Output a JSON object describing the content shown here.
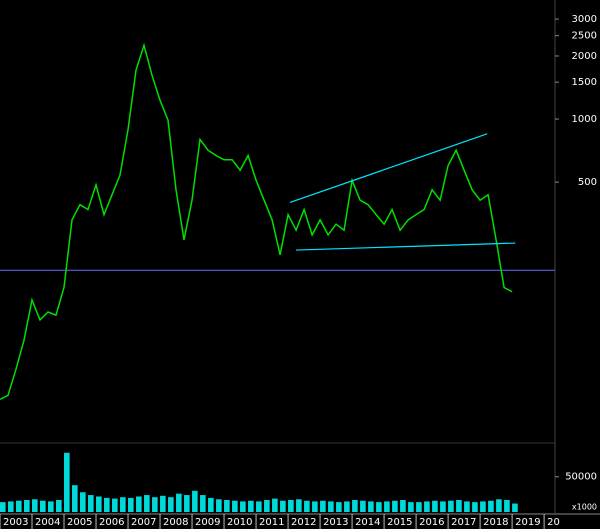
{
  "chart_data": [
    {
      "type": "line",
      "color": "#00e000",
      "log_scale": true,
      "x": [
        2003,
        2003.25,
        2003.5,
        2003.75,
        2004,
        2004.25,
        2004.5,
        2004.75,
        2005,
        2005.25,
        2005.5,
        2005.75,
        2006,
        2006.25,
        2006.5,
        2006.75,
        2007,
        2007.25,
        2007.5,
        2007.75,
        2008,
        2008.25,
        2008.5,
        2008.75,
        2009,
        2009.25,
        2009.5,
        2009.75,
        2010,
        2010.25,
        2010.5,
        2010.75,
        2011,
        2011.25,
        2011.5,
        2011.75,
        2012,
        2012.25,
        2012.5,
        2012.75,
        2013,
        2013.25,
        2013.5,
        2013.75,
        2014,
        2014.25,
        2014.5,
        2014.75,
        2015,
        2015.25,
        2015.5,
        2015.75,
        2016,
        2016.25,
        2016.5,
        2016.75,
        2017,
        2017.25,
        2017.5,
        2017.75,
        2018,
        2018.25,
        2018.5,
        2018.75,
        2019
      ],
      "values": [
        46,
        48,
        64,
        88,
        137,
        110,
        120,
        116,
        157,
        330,
        390,
        370,
        485,
        350,
        435,
        540,
        890,
        1710,
        2250,
        1620,
        1230,
        990,
        460,
        265,
        410,
        800,
        710,
        670,
        640,
        640,
        570,
        670,
        510,
        410,
        330,
        225,
        350,
        295,
        370,
        280,
        330,
        280,
        315,
        295,
        510,
        410,
        390,
        350,
        315,
        370,
        295,
        330,
        350,
        370,
        460,
        410,
        600,
        710,
        570,
        460,
        410,
        435,
        265,
        157,
        150
      ],
      "xlim": [
        2003,
        2020.34
      ],
      "xticks": [
        2003,
        2004,
        2005,
        2006,
        2007,
        2008,
        2009,
        2010,
        2011,
        2012,
        2013,
        2014,
        2015,
        2016,
        2017,
        2018,
        2019,
        {
          "value": 2020,
          "label": "20"
        }
      ],
      "ylim": [
        29.4,
        3700
      ],
      "yticks": [
        500,
        1000,
        1500,
        2000,
        2500,
        3000
      ],
      "lines": [
        {
          "x": [
            2012.06,
            2018.22
          ],
          "y": [
            400,
            850
          ],
          "color": "#00e5ff"
        },
        {
          "x": [
            2012.25,
            2019.1
          ],
          "y": [
            237,
            256
          ],
          "color": "#00e5ff"
        }
      ],
      "hlines": [
        {
          "y": 190,
          "color": "#6a6aff"
        }
      ]
    },
    {
      "type": "bar",
      "color": "#00ffff",
      "x": [
        2003,
        2003.25,
        2003.5,
        2003.75,
        2004,
        2004.25,
        2004.5,
        2004.75,
        2005,
        2005.25,
        2005.5,
        2005.75,
        2006,
        2006.25,
        2006.5,
        2006.75,
        2007,
        2007.25,
        2007.5,
        2007.75,
        2008,
        2008.25,
        2008.5,
        2008.75,
        2009,
        2009.25,
        2009.5,
        2009.75,
        2010,
        2010.25,
        2010.5,
        2010.75,
        2011,
        2011.25,
        2011.5,
        2011.75,
        2012,
        2012.25,
        2012.5,
        2012.75,
        2013,
        2013.25,
        2013.5,
        2013.75,
        2014,
        2014.25,
        2014.5,
        2014.75,
        2015,
        2015.25,
        2015.5,
        2015.75,
        2016,
        2016.25,
        2016.5,
        2016.75,
        2017,
        2017.25,
        2017.5,
        2017.75,
        2018,
        2018.25,
        2018.5,
        2018.75,
        2019
      ],
      "values": [
        14000,
        15000,
        16000,
        17000,
        18000,
        16000,
        15000,
        17000,
        84000,
        38000,
        28000,
        24000,
        22000,
        20000,
        19000,
        21000,
        20000,
        22000,
        24000,
        21000,
        23000,
        21000,
        26000,
        24000,
        30000,
        24000,
        20000,
        18000,
        17000,
        16000,
        15000,
        16000,
        15000,
        17000,
        19000,
        16000,
        17000,
        18000,
        16000,
        15000,
        16000,
        15000,
        14000,
        15000,
        17000,
        16000,
        15000,
        14000,
        15000,
        16000,
        17000,
        14000,
        14000,
        15000,
        16000,
        15000,
        16000,
        17000,
        15000,
        14000,
        15000,
        16000,
        18000,
        17000,
        12000
      ],
      "xlim": [
        2003,
        2020.34
      ],
      "ylim": [
        0,
        95000
      ],
      "yticks": [
        50000
      ],
      "unit_label": "x1000"
    }
  ]
}
